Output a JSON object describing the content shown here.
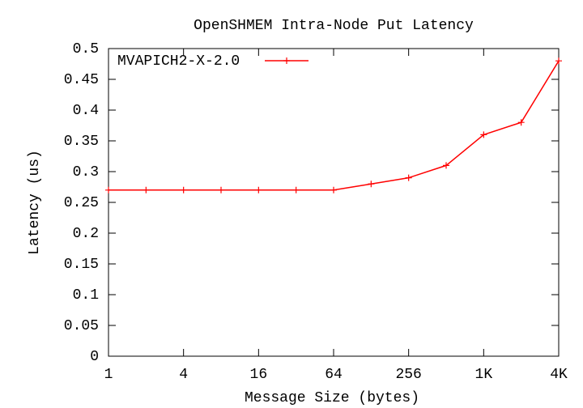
{
  "chart_data": {
    "type": "line",
    "title": "OpenSHMEM Intra-Node Put Latency",
    "x_label": "Message Size (bytes)",
    "y_label": "Latency (us)",
    "x": [
      1,
      2,
      4,
      8,
      16,
      32,
      64,
      128,
      256,
      512,
      1024,
      2048,
      4096
    ],
    "series": [
      {
        "name": "MVAPICH2-X-2.0",
        "color": "#ff0000",
        "values": [
          0.27,
          0.27,
          0.27,
          0.27,
          0.27,
          0.27,
          0.27,
          0.28,
          0.29,
          0.31,
          0.36,
          0.38,
          0.48
        ]
      }
    ],
    "x_log_base": 2,
    "xlim": [
      1,
      4096
    ],
    "xticks": [
      1,
      4,
      16,
      64,
      256,
      {
        "value": 1024,
        "label": "1K"
      },
      {
        "value": 4096,
        "label": "4K"
      }
    ],
    "ylim": [
      0,
      0.5
    ],
    "yticks": [
      0,
      0.05,
      0.1,
      0.15,
      0.2,
      0.25,
      0.3,
      0.35,
      0.4,
      0.45,
      0.5
    ],
    "legend": "top-left"
  }
}
